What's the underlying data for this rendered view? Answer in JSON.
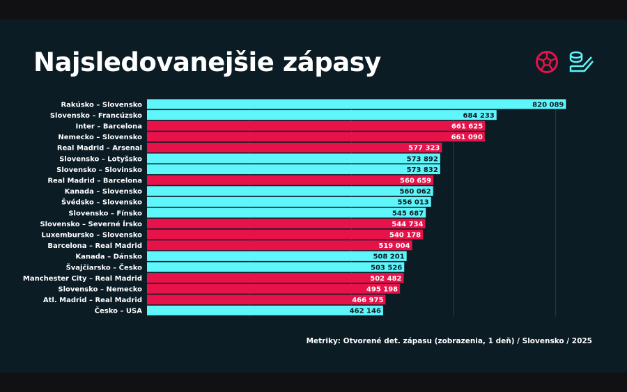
{
  "title": "Najsledovanejšie zápasy",
  "legend_icons": [
    {
      "icon": "football-icon",
      "color": "#e8124a"
    },
    {
      "icon": "hockey-icon",
      "color": "#5ef6fb"
    }
  ],
  "footnote": "Metriky: Otvorené det. zápasu (zobrazenia, 1 deň) / Slovensko / 2025",
  "colors": {
    "background": "#0b1c25",
    "football": "#e8124a",
    "hockey": "#5ef6fb",
    "grid": "#2c3b44"
  },
  "chart_data": {
    "type": "bar",
    "orientation": "horizontal",
    "title": "Najsledovanejšie zápasy",
    "xlim": [
      0,
      900000
    ],
    "grid": true,
    "gridlines": [
      200000,
      400000,
      600000,
      800000
    ],
    "categories": [
      "Rakúsko – Slovensko",
      "Slovensko – Francúzsko",
      "Inter – Barcelona",
      "Nemecko – Slovensko",
      "Real Madrid – Arsenal",
      "Slovensko – Lotyšsko",
      "Slovensko – Slovinsko",
      "Real Madrid – Barcelona",
      "Kanada – Slovensko",
      "Švédsko – Slovensko",
      "Slovensko – Fínsko",
      "Slovensko – Severné Írsko",
      "Luxembursko – Slovensko",
      "Barcelona – Real Madrid",
      "Kanada – Dánsko",
      "Švajčiarsko – Česko",
      "Manchester City – Real Madrid",
      "Slovensko – Nemecko",
      "Atl. Madrid – Real Madrid",
      "Česko – USA"
    ],
    "values": [
      820089,
      684233,
      661625,
      661090,
      577323,
      573892,
      573832,
      560659,
      560062,
      556013,
      545687,
      544734,
      540178,
      519004,
      508201,
      503526,
      502482,
      495198,
      466975,
      462146
    ],
    "labels": [
      "820 089",
      "684 233",
      "661 625",
      "661 090",
      "577 323",
      "573 892",
      "573 832",
      "560 659",
      "560 062",
      "556 013",
      "545 687",
      "544 734",
      "540 178",
      "519 004",
      "508 201",
      "503 526",
      "502 482",
      "495 198",
      "466 975",
      "462 146"
    ],
    "sport": [
      "hockey",
      "hockey",
      "football",
      "football",
      "football",
      "hockey",
      "hockey",
      "football",
      "hockey",
      "hockey",
      "hockey",
      "football",
      "football",
      "football",
      "hockey",
      "hockey",
      "football",
      "football",
      "football",
      "hockey"
    ]
  }
}
